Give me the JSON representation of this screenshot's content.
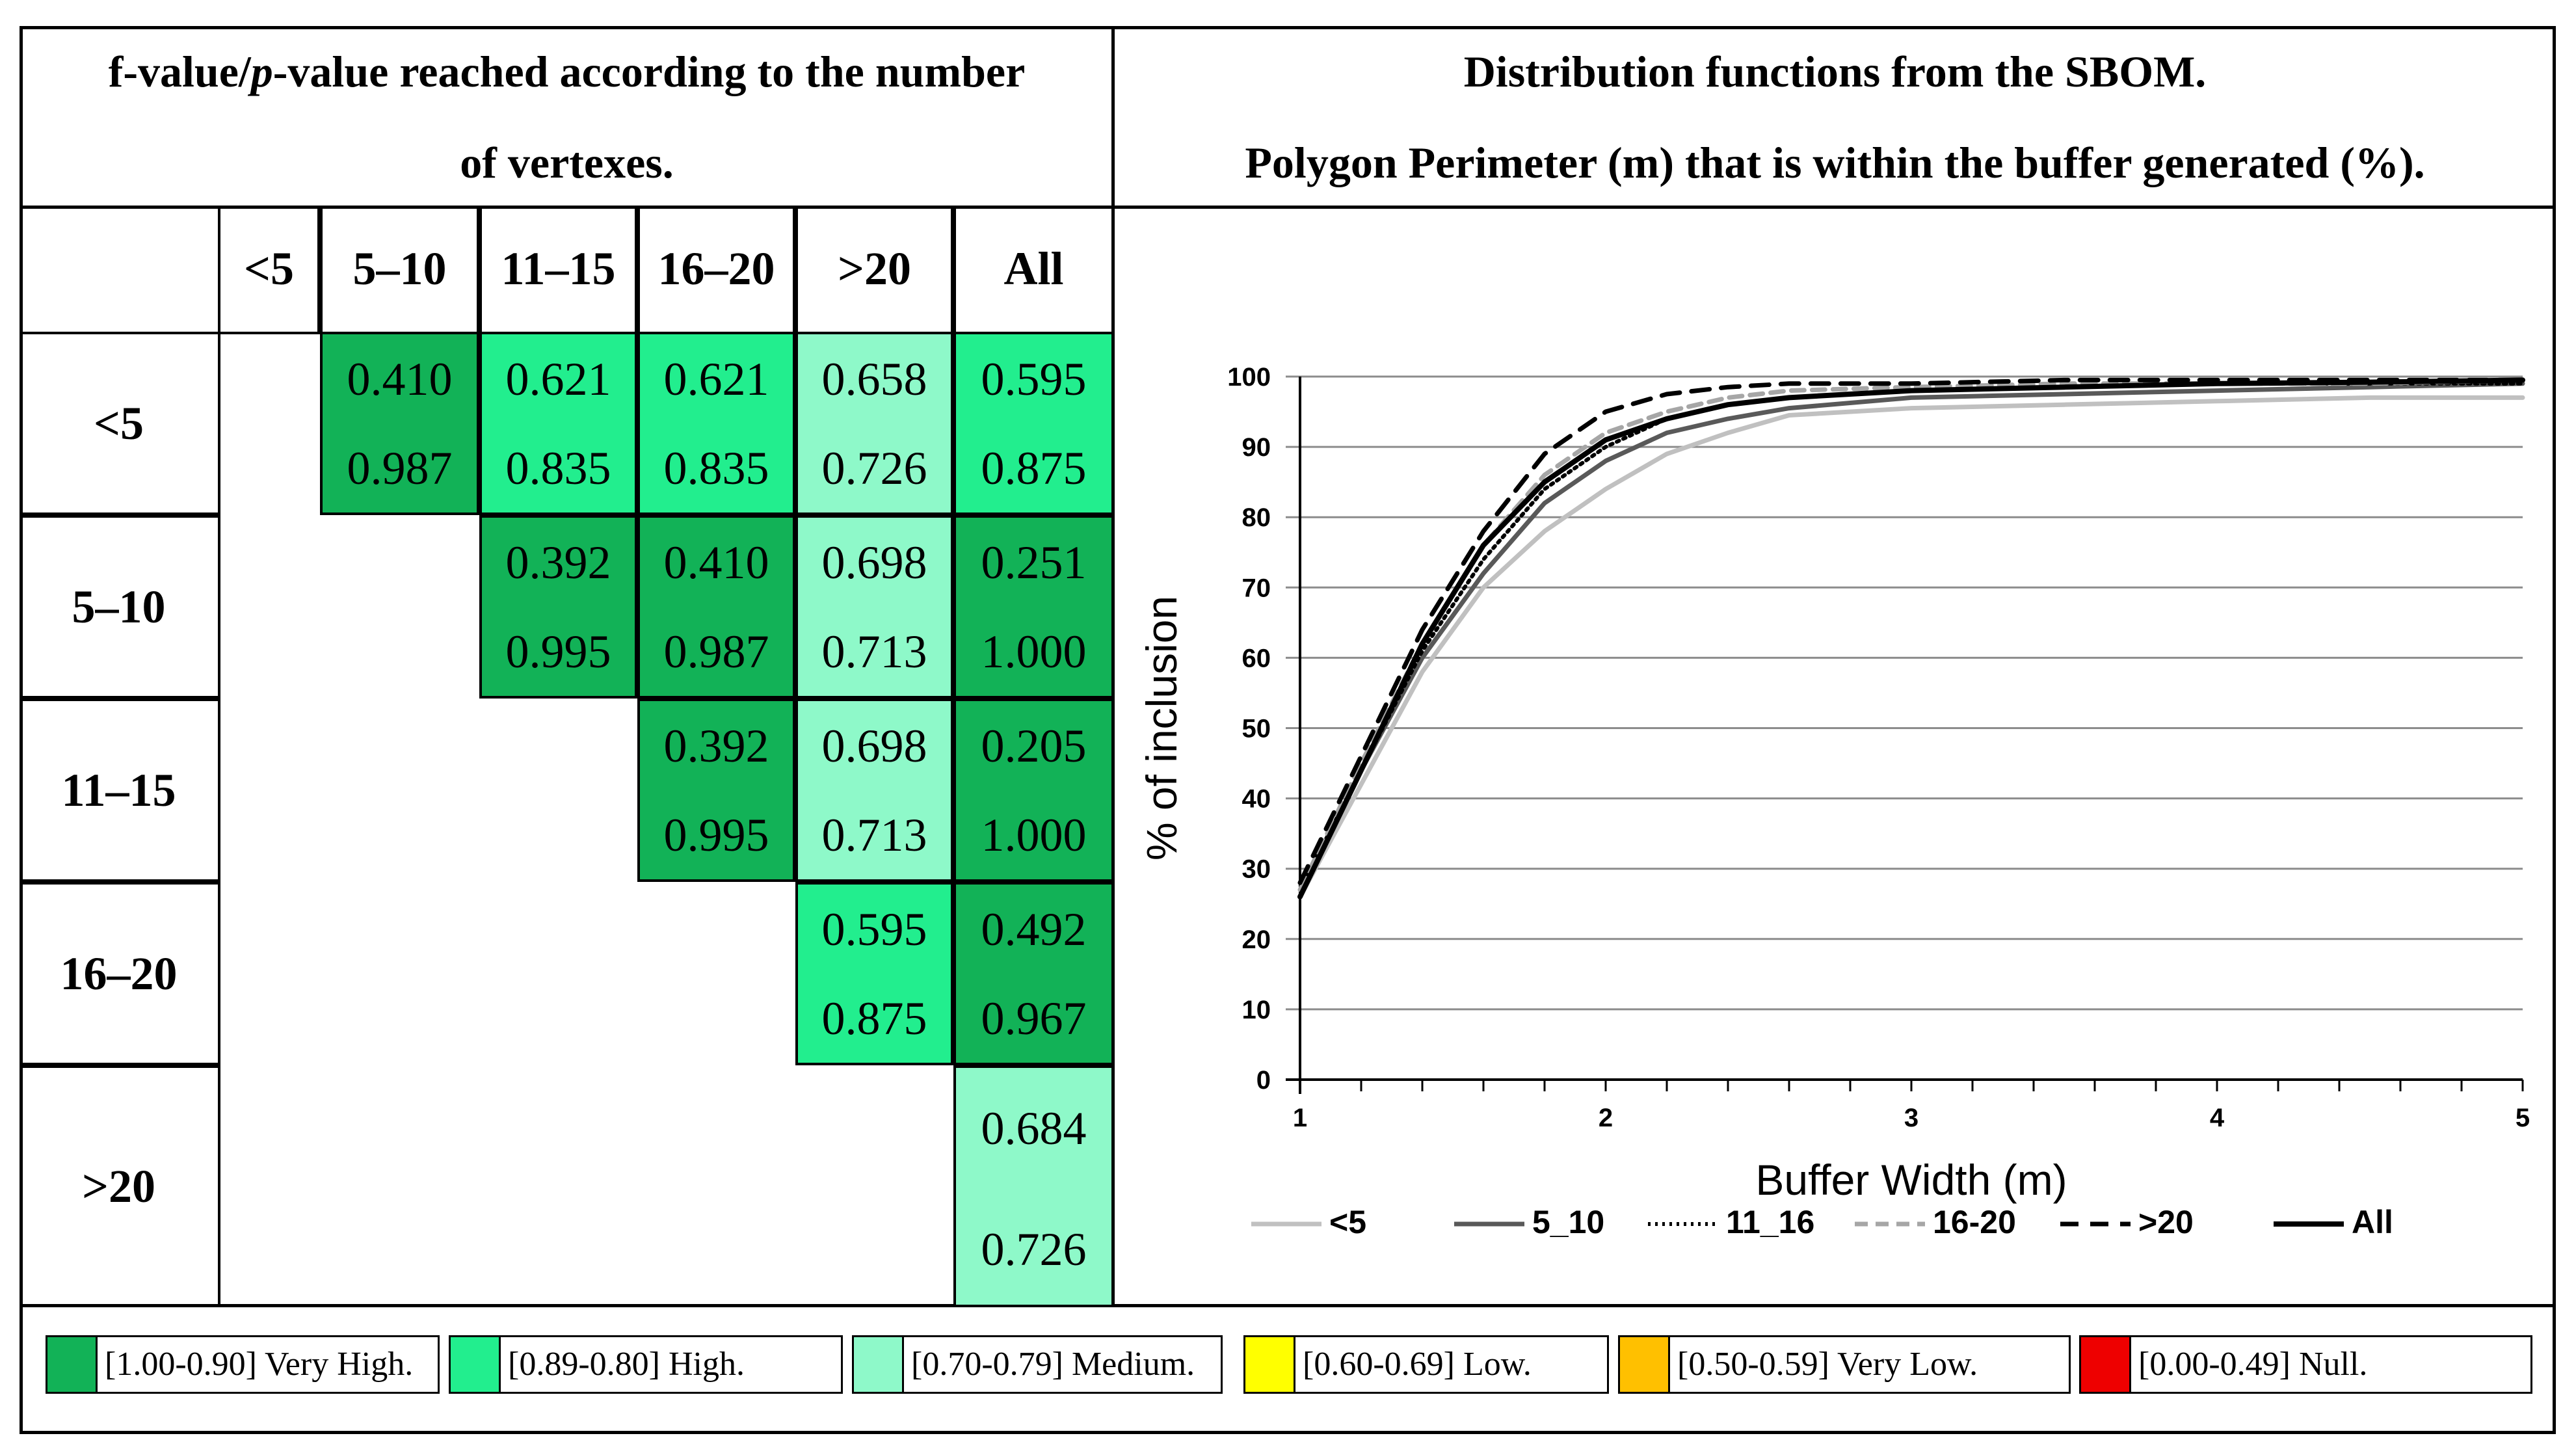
{
  "header": {
    "left_line1": "f-value/",
    "left_italic": "p",
    "left_line1_rest": "-value reached according to the number",
    "left_line2": "of vertexes.",
    "right_line1": "Distribution functions from the SBOM.",
    "right_line2": "Polygon Perimeter (m) that is within the buffer generated (%)."
  },
  "matrix": {
    "columns": [
      "<5",
      "5–10",
      "11–15",
      "16–20",
      ">20",
      "All"
    ],
    "rows": [
      {
        "label": "<5",
        "cells": [
          null,
          {
            "f": "0.410",
            "p": "0.987",
            "cls": "Very High"
          },
          {
            "f": "0.621",
            "p": "0.835",
            "cls": "High"
          },
          {
            "f": "0.621",
            "p": "0.835",
            "cls": "High"
          },
          {
            "f": "0.658",
            "p": "0.726",
            "cls": "Medium"
          },
          {
            "f": "0.595",
            "p": "0.875",
            "cls": "High"
          }
        ]
      },
      {
        "label": "5–10",
        "cells": [
          null,
          null,
          {
            "f": "0.392",
            "p": "0.995",
            "cls": "Very High"
          },
          {
            "f": "0.410",
            "p": "0.987",
            "cls": "Very High"
          },
          {
            "f": "0.698",
            "p": "0.713",
            "cls": "Medium"
          },
          {
            "f": "0.251",
            "p": "1.000",
            "cls": "Very High"
          }
        ]
      },
      {
        "label": "11–15",
        "cells": [
          null,
          null,
          null,
          {
            "f": "0.392",
            "p": "0.995",
            "cls": "Very High"
          },
          {
            "f": "0.698",
            "p": "0.713",
            "cls": "Medium"
          },
          {
            "f": "0.205",
            "p": "1.000",
            "cls": "Very High"
          }
        ]
      },
      {
        "label": "16–20",
        "cells": [
          null,
          null,
          null,
          null,
          {
            "f": "0.595",
            "p": "0.875",
            "cls": "High"
          },
          {
            "f": "0.492",
            "p": "0.967",
            "cls": "Very High"
          }
        ]
      },
      {
        "label": ">20",
        "cells": [
          null,
          null,
          null,
          null,
          null,
          {
            "f": "0.684",
            "p": "0.726",
            "cls": "Medium"
          }
        ]
      }
    ]
  },
  "legend": [
    {
      "label": "[1.00-0.90] Very High.",
      "color": "#12b257"
    },
    {
      "label": "[0.89-0.80] High.",
      "color": "#22ee8e"
    },
    {
      "label": "[0.70-0.79] Medium.",
      "color": "#8ef9c9"
    },
    {
      "label": "[0.60-0.69] Low.",
      "color": "#ffff00"
    },
    {
      "label": "[0.50-0.59] Very Low.",
      "color": "#ffc000"
    },
    {
      "label": "[0.00-0.49] Null.",
      "color": "#ee0000"
    }
  ],
  "chart_data": {
    "type": "line",
    "title": "",
    "xlabel": "Buffer Width (m)",
    "ylabel": "% of inclusion",
    "xlim": [
      1,
      5
    ],
    "ylim": [
      0,
      100
    ],
    "xticks": [
      "1",
      "2",
      "3",
      "4",
      "5"
    ],
    "yticks": [
      "0",
      "10",
      "20",
      "30",
      "40",
      "50",
      "60",
      "70",
      "80",
      "90",
      "100"
    ],
    "grid": "horizontal",
    "legend_position": "bottom",
    "x": [
      1,
      1.2,
      1.4,
      1.6,
      1.8,
      2,
      2.2,
      2.4,
      2.6,
      3,
      3.5,
      4,
      4.5,
      5
    ],
    "series": [
      {
        "name": "<5",
        "color": "#c0c0c0",
        "dash": "solid",
        "values": [
          26,
          42,
          58,
          70,
          78,
          84,
          89,
          92,
          94.5,
          95.5,
          96,
          96.5,
          97,
          97
        ]
      },
      {
        "name": "5_10",
        "color": "#595959",
        "dash": "solid",
        "values": [
          26,
          44,
          60,
          72,
          82,
          88,
          92,
          94,
          95.5,
          97,
          97.5,
          98,
          98.5,
          99
        ]
      },
      {
        "name": "11_16",
        "color": "#000000",
        "dash": "dotted",
        "values": [
          27,
          44,
          61,
          74,
          84,
          90,
          94,
          96,
          97,
          98,
          98.5,
          99,
          99,
          99
        ]
      },
      {
        "name": "16-20",
        "color": "#a6a6a6",
        "dash": "dashed",
        "values": [
          27,
          45,
          62,
          76,
          86,
          92,
          95,
          97,
          98,
          98.5,
          99,
          99,
          99,
          99.5
        ]
      },
      {
        "name": ">20",
        "color": "#000000",
        "dash": "longdash",
        "values": [
          28,
          46,
          64,
          78,
          89,
          95,
          97.5,
          98.5,
          99,
          99,
          99.5,
          99.5,
          99.5,
          99.5
        ]
      },
      {
        "name": "All",
        "color": "#000000",
        "dash": "solid",
        "values": [
          26,
          44,
          62,
          76,
          85,
          91,
          94,
          96,
          97,
          98,
          98.5,
          99,
          99.2,
          99.5
        ]
      }
    ]
  }
}
